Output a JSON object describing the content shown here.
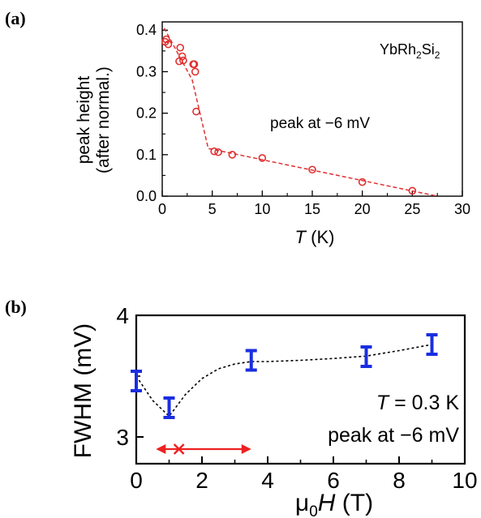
{
  "chart_data": [
    {
      "panel_label": "(a)",
      "type": "scatter",
      "ylabel_line1": "peak height",
      "ylabel_line2": "(after normal.)",
      "xlabel_italic": "T",
      "xlabel_unit": " (K)",
      "xlim": [
        0,
        30
      ],
      "ylim": [
        0,
        0.42
      ],
      "xticks": [
        0,
        5,
        10,
        15,
        20,
        25,
        30
      ],
      "yticks": [
        0.0,
        0.1,
        0.2,
        0.3,
        0.4
      ],
      "ytick_labels": [
        "0.0",
        "0.1",
        "0.2",
        "0.3",
        "0.4"
      ],
      "grid": false,
      "annotation_compound": {
        "base": "YbRh",
        "sub1": "2",
        "mid": "Si",
        "sub2": "2"
      },
      "annotation_peak": "peak at −6 mV",
      "marker_color": "#e03030",
      "points": {
        "x": [
          0.3,
          0.4,
          0.6,
          1.7,
          1.8,
          2.0,
          2.1,
          3.1,
          3.2,
          3.3,
          3.4,
          5.2,
          5.6,
          7.0,
          10.0,
          15.0,
          20.0,
          25.0
        ],
        "y": [
          0.372,
          0.378,
          0.366,
          0.325,
          0.358,
          0.337,
          0.327,
          0.318,
          0.318,
          0.3,
          0.204,
          0.108,
          0.106,
          0.1,
          0.092,
          0.064,
          0.034,
          0.013
        ]
      },
      "fit_line": {
        "x": [
          0.2,
          3.0,
          4.6,
          27.5
        ],
        "y": [
          0.405,
          0.28,
          0.115,
          0.0
        ]
      }
    },
    {
      "panel_label": "(b)",
      "type": "scatter",
      "ylabel": "FWHM (mV)",
      "xlabel_mu": "μ",
      "xlabel_sub": "0",
      "xlabel_italic": "H",
      "xlabel_unit": " (T)",
      "xlim": [
        0,
        10
      ],
      "ylim": [
        2.78,
        4.0
      ],
      "xticks": [
        0,
        2,
        4,
        6,
        8,
        10
      ],
      "yticks": [
        3,
        4
      ],
      "grid": false,
      "annotation_temp_italic": "T",
      "annotation_temp_rest": " = 0.3 K",
      "annotation_peak": "peak at −6 mV",
      "marker_color": "#1a2ee0",
      "arrow_color": "#ee2020",
      "points": {
        "x": [
          0,
          1,
          3.5,
          7,
          9
        ],
        "y": [
          3.46,
          3.24,
          3.63,
          3.66,
          3.76
        ],
        "err": [
          0.08,
          0.08,
          0.08,
          0.08,
          0.08
        ]
      },
      "fit_line": {
        "x": [
          0,
          0.5,
          1,
          1.5,
          2,
          2.5,
          3,
          3.5,
          4,
          5,
          6,
          7,
          8,
          9
        ],
        "y": [
          3.5,
          3.3,
          3.17,
          3.35,
          3.48,
          3.56,
          3.6,
          3.62,
          3.62,
          3.63,
          3.645,
          3.665,
          3.71,
          3.76
        ]
      },
      "range_arrow": {
        "from": 0.6,
        "to": 3.5,
        "cross_at": 1.3,
        "y": 2.9
      }
    }
  ]
}
